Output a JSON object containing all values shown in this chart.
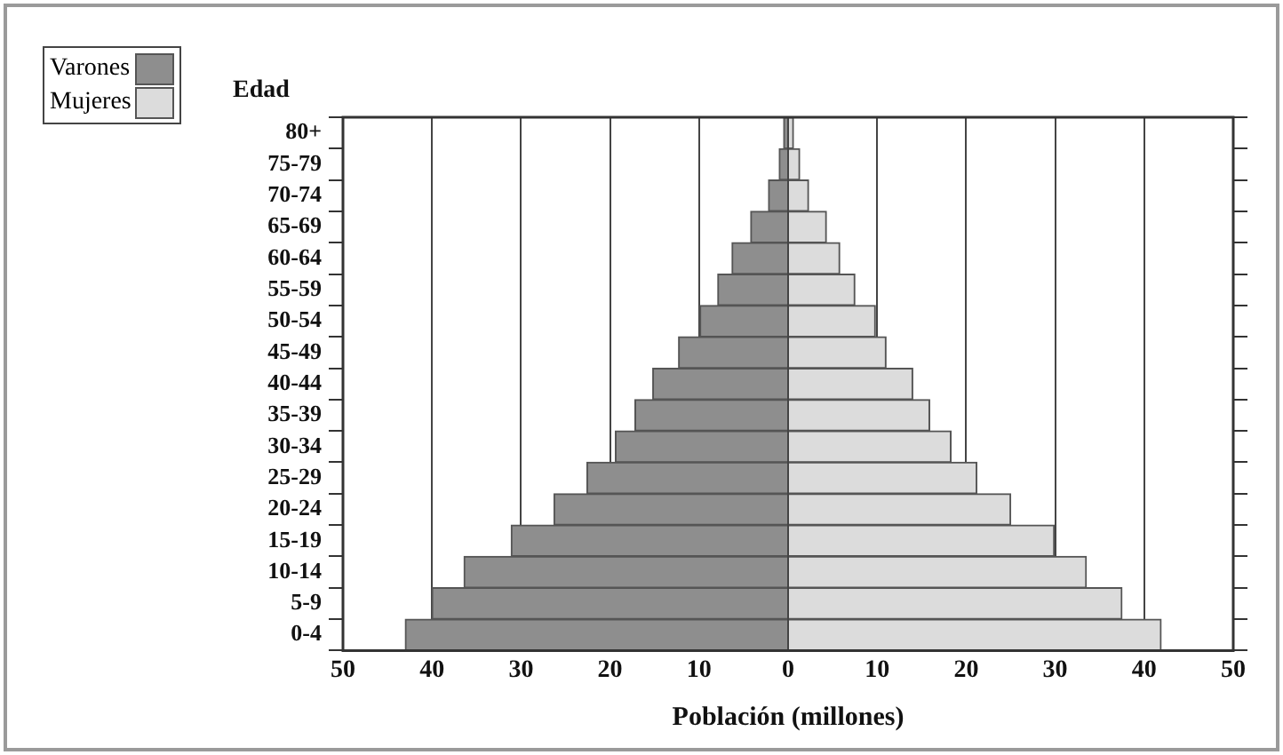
{
  "chart_data": {
    "type": "bar",
    "orientation": "horizontal",
    "stacked": true,
    "xlabel": "Población (millones)",
    "ylabel": "Edad",
    "categories": [
      "80+",
      "75-79",
      "70-74",
      "65-69",
      "60-64",
      "55-59",
      "50-54",
      "45-49",
      "40-44",
      "35-39",
      "30-34",
      "25-29",
      "20-24",
      "15-19",
      "10-14",
      "5-9",
      "0-4"
    ],
    "series": [
      {
        "name": "Varones",
        "color": "#8e8e8e",
        "values": [
          -0.5,
          -1.0,
          -2.2,
          -4.2,
          -6.3,
          -7.9,
          -9.9,
          -12.3,
          -15.2,
          -17.2,
          -19.4,
          -22.6,
          -26.3,
          -31.1,
          -36.4,
          -40,
          -43
        ]
      },
      {
        "name": "Mujeres",
        "color": "#dcdcdc",
        "values": [
          0.6,
          1.3,
          2.3,
          4.3,
          5.8,
          7.5,
          9.8,
          11,
          14,
          15.9,
          18.3,
          21.2,
          25,
          29.9,
          33.5,
          37.5,
          41.9
        ]
      }
    ],
    "xlim": [
      -50,
      50
    ],
    "xticks": [
      {
        "value": -50,
        "label": "50"
      },
      {
        "value": -40,
        "label": "40"
      },
      {
        "value": -30,
        "label": "30"
      },
      {
        "value": -20,
        "label": "20"
      },
      {
        "value": -10,
        "label": "10"
      },
      0,
      10,
      20,
      30,
      40,
      50
    ],
    "grid": "x",
    "legend": "top left"
  }
}
